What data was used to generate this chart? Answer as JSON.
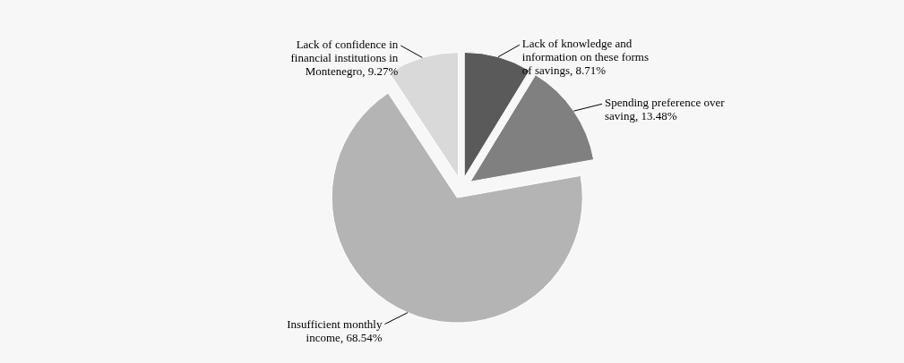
{
  "chart_data": {
    "type": "pie",
    "categories": [
      "Lack of knowledge and information on these forms of savings",
      "Spending preference over saving",
      "Insufficient monthly income",
      "Lack of confidence in financial institutions in Montenegro"
    ],
    "values": [
      8.71,
      13.48,
      68.54,
      9.27
    ],
    "value_labels": [
      "8.71%",
      "13.48%",
      "68.54%",
      "9.27%"
    ],
    "colors": [
      "#5a5a5a",
      "#808080",
      "#b4b4b4",
      "#d9d9d9"
    ]
  }
}
